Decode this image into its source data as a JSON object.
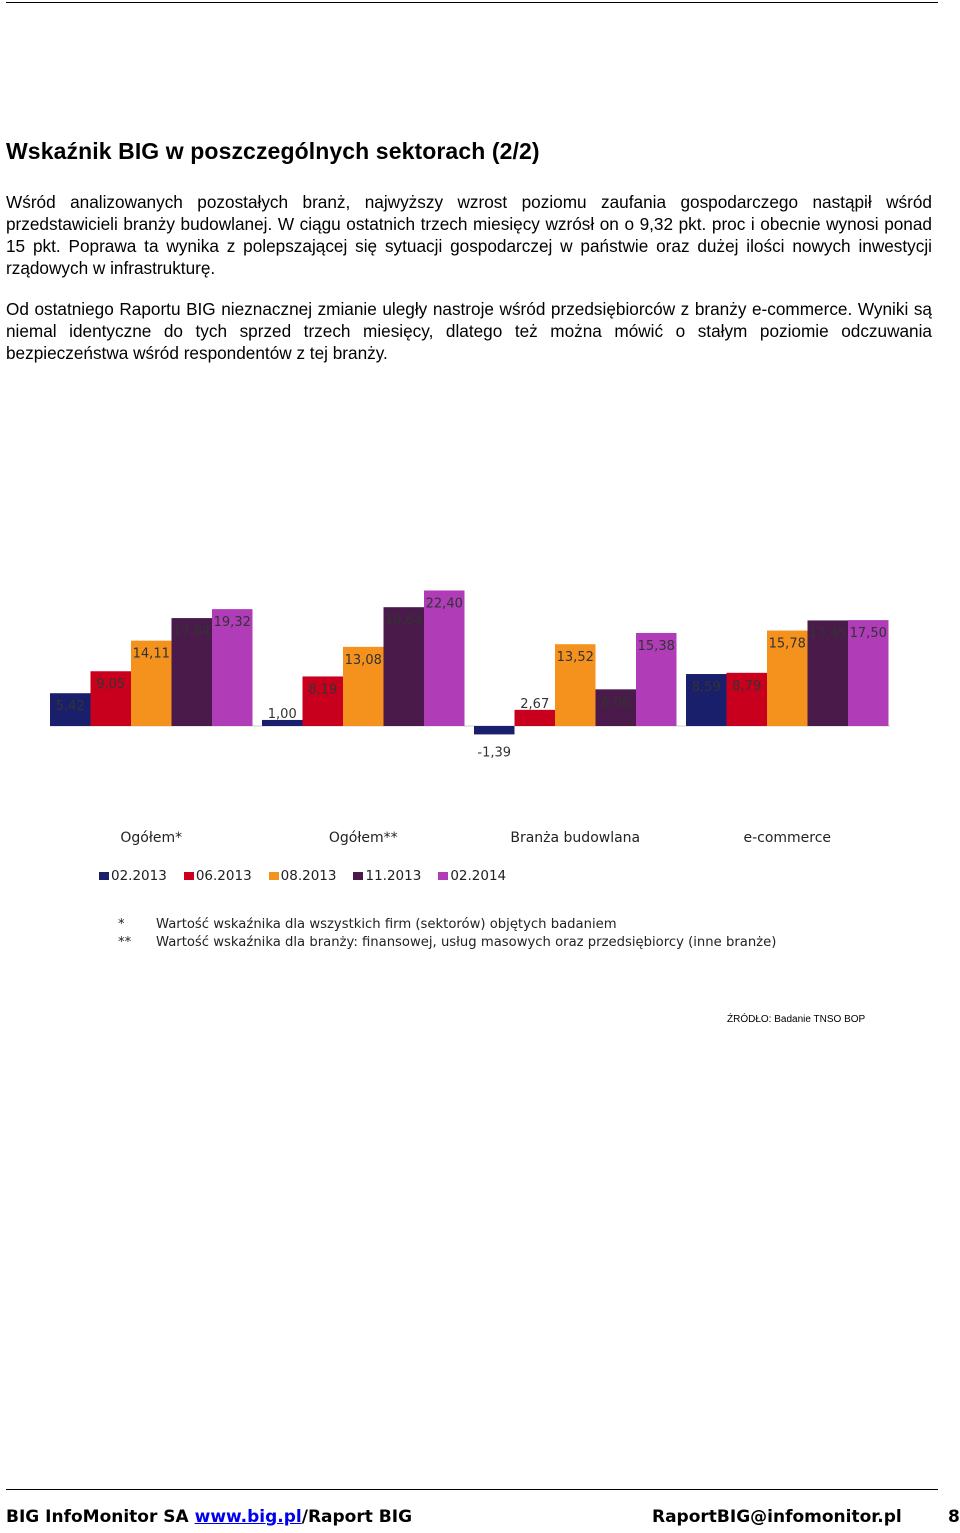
{
  "title": "Wskaźnik BIG w poszczególnych sektorach (2/2)",
  "paragraphs": [
    "Wśród analizowanych pozostałych branż, najwyższy wzrost poziomu zaufania gospodarczego nastąpił wśród przedstawicieli branży budowlanej. W ciągu ostatnich trzech miesięcy wzrósł on o 9,32 pkt. proc i obecnie wynosi ponad 15 pkt. Poprawa ta wynika z polepszającej się sytuacji gospodarczej w państwie oraz dużej ilości nowych inwestycji rządowych w infrastrukturę.",
    "Od ostatniego Raportu BIG nieznacznej zmianie uległy nastroje wśród przedsiębiorców z branży e-commerce. Wyniki są niemal identyczne do tych sprzed trzech miesięcy, dlatego też można mówić o stałym poziomie odczuwania bezpieczeństwa wśród respondentów z tej branży."
  ],
  "chart_data": {
    "type": "bar",
    "categories": [
      "Ogółem*",
      "Ogółem**",
      "Branża budowlana",
      "e-commerce"
    ],
    "series": [
      {
        "name": "02.2013",
        "color": "#1a1f6b",
        "values": [
          5.42,
          1.0,
          -1.39,
          8.59
        ]
      },
      {
        "name": "06.2013",
        "color": "#c8001e",
        "values": [
          9.05,
          8.19,
          2.67,
          8.79
        ]
      },
      {
        "name": "08.2013",
        "color": "#f5921e",
        "values": [
          14.11,
          13.08,
          13.52,
          15.78
        ]
      },
      {
        "name": "11.2013",
        "color": "#4a1a4a",
        "values": [
          17.84,
          19.64,
          6.06,
          17.45
        ]
      },
      {
        "name": "02.2014",
        "color": "#b03cb8",
        "values": [
          19.32,
          22.4,
          15.38,
          17.5
        ]
      }
    ],
    "value_labels": [
      [
        "5,42",
        "1,00",
        "-1,39",
        "8,59"
      ],
      [
        "9,05",
        "8,19",
        "2,67",
        "8,79"
      ],
      [
        "14,11",
        "13,08",
        "13,52",
        "15,78"
      ],
      [
        "17,84",
        "19,64",
        "6,06",
        "17,45"
      ],
      [
        "19,32",
        "22,40",
        "15,38",
        "17,50"
      ]
    ],
    "legend": "bottom-left",
    "grid": false
  },
  "notes": [
    {
      "mark": "*",
      "text": "Wartość wskaźnika dla wszystkich firm (sektorów) objętych badaniem"
    },
    {
      "mark": "**",
      "text": "Wartość wskaźnika dla branży: finansowej, usług masowych oraz przedsiębiorcy (inne branże)"
    }
  ],
  "source": "ŹRÓDŁO: Badanie TNSO BOP",
  "footer": {
    "company": "BIG InfoMonitor SA ",
    "link": "www.big.pl",
    "link_suffix": "/Raport BIG",
    "email": "RaportBIG@infomonitor.pl",
    "page_number": "8"
  }
}
